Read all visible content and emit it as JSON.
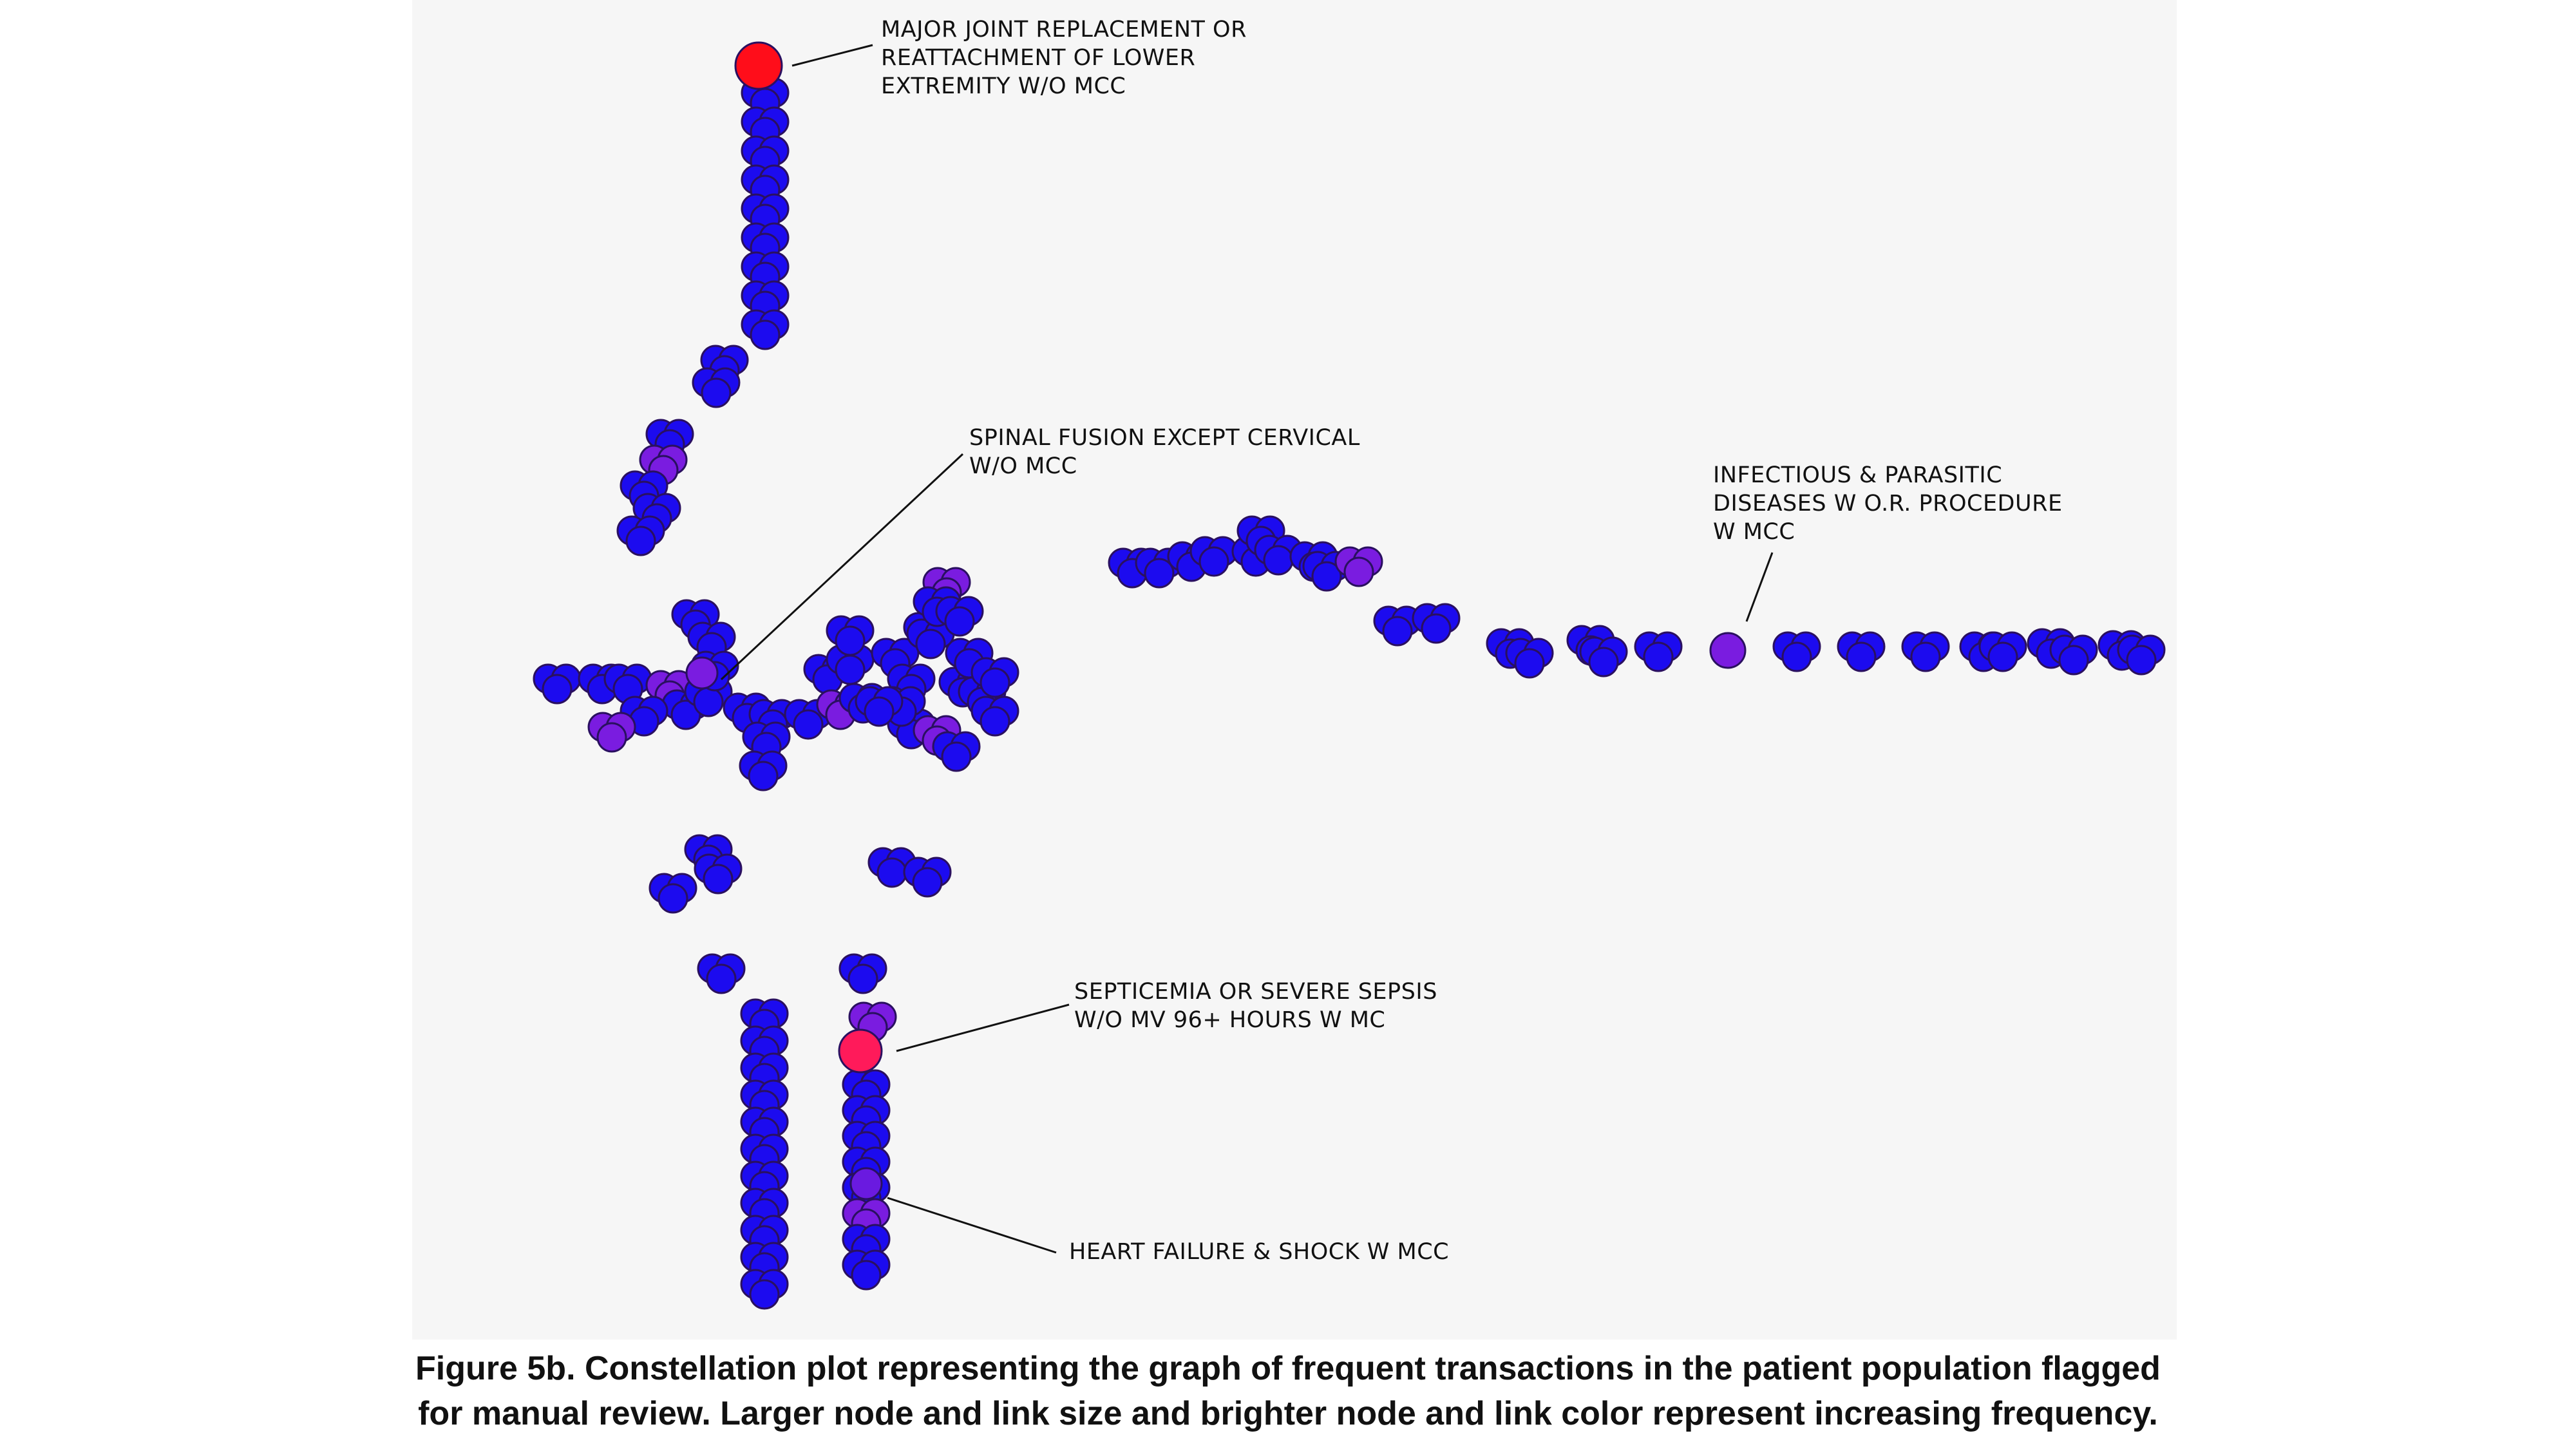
{
  "colors": {
    "panel_background": "#f6f6f6",
    "node_low": "#1c0bef",
    "node_mid": "#7a1ce0",
    "node_high": "#ff0d1a",
    "node_high_alt": "#ff1a5a",
    "node_outline": "#2a1060",
    "leader_line": "#111111"
  },
  "annotations": [
    {
      "id": "major-joint",
      "text": "MAJOR JOINT REPLACEMENT OR\nREATTACHMENT OF LOWER\nEXTREMITY W/O MCC"
    },
    {
      "id": "spinal-fusion",
      "text": "SPINAL FUSION EXCEPT CERVICAL\nW/O MCC"
    },
    {
      "id": "infectious",
      "text": "INFECTIOUS & PARASITIC\nDISEASES W O.R. PROCEDURE\nW MCC"
    },
    {
      "id": "septicemia",
      "text": "SEPTICEMIA OR SEVERE SEPSIS\nW/O MV 96+ HOURS W MC"
    },
    {
      "id": "heart-failure",
      "text": "HEART FAILURE & SHOCK W MCC"
    }
  ],
  "caption": {
    "line1": "Figure 5b. Constellation plot representing the graph of frequent transactions in the patient population flagged",
    "line2": "for manual review. Larger node and link size and brighter node and link color represent increasing frequency."
  }
}
